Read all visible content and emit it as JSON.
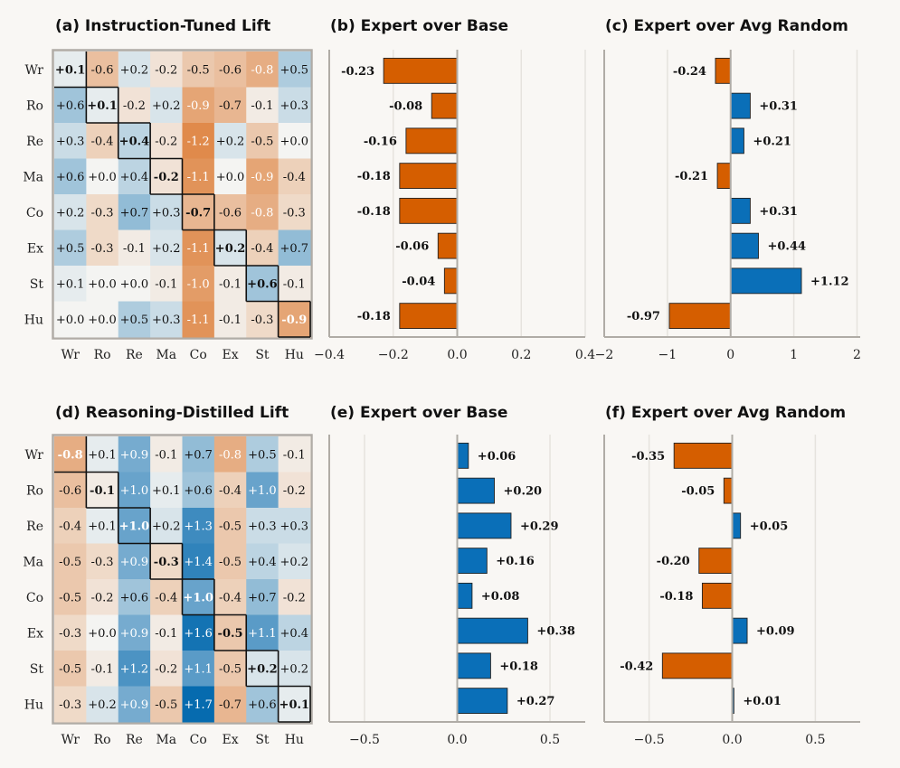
{
  "colors": {
    "background": "#f9f7f4",
    "positive": "#0a6fb8",
    "negative": "#d55e00",
    "spine": "#b0aca6",
    "grid": "#e6e3de",
    "highlight_border": "#111111"
  },
  "chart_data": [
    {
      "id": "a",
      "type": "heatmap",
      "title": "(a) Instruction-Tuned Lift",
      "row_labels": [
        "Wr",
        "Ro",
        "Re",
        "Ma",
        "Co",
        "Ex",
        "St",
        "Hu"
      ],
      "col_labels": [
        "Wr",
        "Ro",
        "Re",
        "Ma",
        "Co",
        "Ex",
        "St",
        "Hu"
      ],
      "values": [
        [
          0.1,
          -0.6,
          0.2,
          -0.2,
          -0.5,
          -0.6,
          -0.8,
          0.5
        ],
        [
          0.6,
          0.1,
          -0.2,
          0.2,
          -0.9,
          -0.7,
          -0.1,
          0.3
        ],
        [
          0.3,
          -0.4,
          0.4,
          -0.2,
          -1.2,
          0.2,
          -0.5,
          0.0
        ],
        [
          0.6,
          0.0,
          0.4,
          -0.2,
          -1.1,
          0.0,
          -0.9,
          -0.4
        ],
        [
          0.2,
          -0.3,
          0.7,
          0.3,
          -0.7,
          -0.6,
          -0.8,
          -0.3
        ],
        [
          0.5,
          -0.3,
          -0.1,
          0.2,
          -1.1,
          0.2,
          -0.4,
          0.7
        ],
        [
          0.1,
          0.0,
          0.0,
          -0.1,
          -1.0,
          -0.1,
          0.6,
          -0.1
        ],
        [
          0.0,
          0.0,
          0.5,
          0.3,
          -1.1,
          -0.1,
          -0.3,
          -0.9
        ]
      ],
      "color_range": [
        -1.7,
        1.7
      ],
      "diagonal_highlighted": true
    },
    {
      "id": "b",
      "type": "bar",
      "orientation": "horizontal",
      "title": "(b) Expert over Base",
      "categories": [
        "Wr",
        "Ro",
        "Re",
        "Ma",
        "Co",
        "Ex",
        "St",
        "Hu"
      ],
      "values": [
        -0.23,
        -0.08,
        -0.16,
        -0.18,
        -0.18,
        -0.06,
        -0.04,
        -0.18
      ],
      "labels": [
        "-0.23",
        "-0.08",
        "-0.16",
        "-0.18",
        "-0.18",
        "-0.06",
        "-0.04",
        "-0.18"
      ],
      "xlim": [
        -0.4,
        0.4
      ],
      "xticks": [
        -0.4,
        -0.2,
        0.0,
        0.2,
        0.4
      ],
      "xtick_labels": [
        "−0.4",
        "−0.2",
        "0.0",
        "0.2",
        "0.4"
      ],
      "grid": true
    },
    {
      "id": "c",
      "type": "bar",
      "orientation": "horizontal",
      "title": "(c) Expert over Avg Random",
      "categories": [
        "Wr",
        "Ro",
        "Re",
        "Ma",
        "Co",
        "Ex",
        "St",
        "Hu"
      ],
      "values": [
        -0.24,
        0.31,
        0.21,
        -0.21,
        0.31,
        0.44,
        1.12,
        -0.97
      ],
      "labels": [
        "-0.24",
        "+0.31",
        "+0.21",
        "-0.21",
        "+0.31",
        "+0.44",
        "+1.12",
        "-0.97"
      ],
      "xlim": [
        -2.0,
        2.0
      ],
      "xticks": [
        -2,
        -1,
        0,
        1,
        2
      ],
      "xtick_labels": [
        "−2",
        "−1",
        "0",
        "1",
        "2"
      ],
      "grid": true
    },
    {
      "id": "d",
      "type": "heatmap",
      "title": "(d) Reasoning-Distilled Lift",
      "row_labels": [
        "Wr",
        "Ro",
        "Re",
        "Ma",
        "Co",
        "Ex",
        "St",
        "Hu"
      ],
      "col_labels": [
        "Wr",
        "Ro",
        "Re",
        "Ma",
        "Co",
        "Ex",
        "St",
        "Hu"
      ],
      "values": [
        [
          -0.8,
          0.1,
          0.9,
          -0.1,
          0.7,
          -0.8,
          0.5,
          -0.1
        ],
        [
          -0.6,
          -0.1,
          1.0,
          0.1,
          0.6,
          -0.4,
          1.0,
          -0.2
        ],
        [
          -0.4,
          0.1,
          1.0,
          0.2,
          1.3,
          -0.5,
          0.3,
          0.3
        ],
        [
          -0.5,
          -0.3,
          0.9,
          -0.3,
          1.4,
          -0.5,
          0.4,
          0.2
        ],
        [
          -0.5,
          -0.2,
          0.6,
          -0.4,
          1.0,
          -0.4,
          0.7,
          -0.2
        ],
        [
          -0.3,
          0.0,
          0.9,
          -0.1,
          1.6,
          -0.5,
          1.1,
          0.4
        ],
        [
          -0.5,
          -0.1,
          1.2,
          -0.2,
          1.1,
          -0.5,
          0.2,
          0.2
        ],
        [
          -0.3,
          0.2,
          0.9,
          -0.5,
          1.7,
          -0.7,
          0.6,
          0.1
        ]
      ],
      "color_range": [
        -1.7,
        1.7
      ],
      "diagonal_highlighted": true
    },
    {
      "id": "e",
      "type": "bar",
      "orientation": "horizontal",
      "title": "(e) Expert over Base",
      "categories": [
        "Wr",
        "Ro",
        "Re",
        "Ma",
        "Co",
        "Ex",
        "St",
        "Hu"
      ],
      "values": [
        0.06,
        0.2,
        0.29,
        0.16,
        0.08,
        0.38,
        0.18,
        0.27
      ],
      "labels": [
        "+0.06",
        "+0.20",
        "+0.29",
        "+0.16",
        "+0.08",
        "+0.38",
        "+0.18",
        "+0.27"
      ],
      "xlim": [
        -0.69,
        0.69
      ],
      "xticks": [
        -0.5,
        0.0,
        0.5
      ],
      "xtick_labels": [
        "−0.5",
        "0.0",
        "0.5"
      ],
      "grid": true
    },
    {
      "id": "f",
      "type": "bar",
      "orientation": "horizontal",
      "title": "(f) Expert over Avg Random",
      "categories": [
        "Wr",
        "Ro",
        "Re",
        "Ma",
        "Co",
        "Ex",
        "St",
        "Hu"
      ],
      "values": [
        -0.35,
        -0.05,
        0.05,
        -0.2,
        -0.18,
        0.09,
        -0.42,
        0.01
      ],
      "labels": [
        "-0.35",
        "-0.05",
        "+0.05",
        "-0.20",
        "-0.18",
        "+0.09",
        "-0.42",
        "+0.01"
      ],
      "xlim": [
        -0.77,
        0.77
      ],
      "xticks": [
        -0.5,
        0.0,
        0.5
      ],
      "xtick_labels": [
        "−0.5",
        "0.0",
        "0.5"
      ],
      "grid": true
    }
  ]
}
